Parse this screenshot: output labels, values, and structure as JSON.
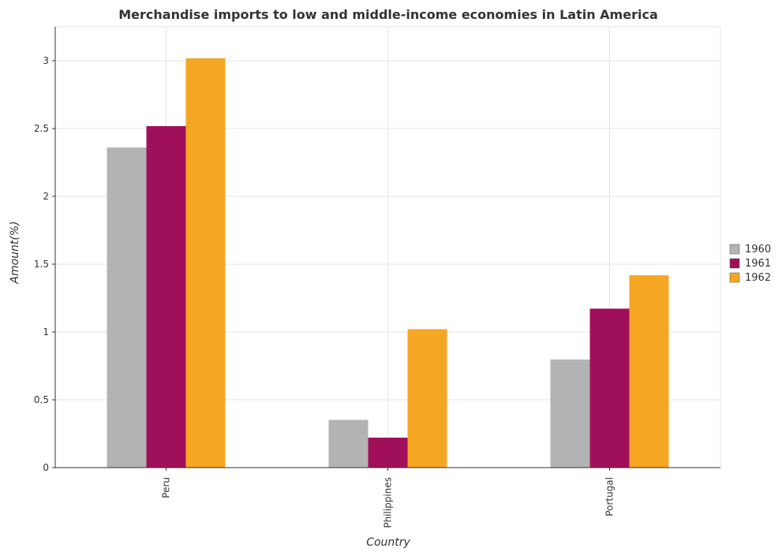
{
  "chart_data": {
    "type": "bar",
    "title": "Merchandise imports to low and middle-income economies in Latin America",
    "xlabel": "Country",
    "ylabel": "Amount(%)",
    "categories": [
      "Peru",
      "Philippines",
      "Portugal"
    ],
    "series": [
      {
        "name": "1960",
        "color": "#b3b3b3",
        "values": [
          2.36,
          0.352,
          0.797
        ]
      },
      {
        "name": "1961",
        "color": "#a0105a",
        "values": [
          2.518,
          0.221,
          1.172
        ]
      },
      {
        "name": "1962",
        "color": "#f5a623",
        "values": [
          3.018,
          1.021,
          1.418
        ]
      }
    ],
    "ylim": [
      0,
      3.25
    ],
    "yticks": [
      0,
      0.5,
      1,
      1.5,
      2,
      2.5,
      3
    ],
    "ytick_labels": [
      "0",
      "0.5",
      "1",
      "1.5",
      "2",
      "2.5",
      "3"
    ],
    "grid": true,
    "legend_position": "right"
  }
}
